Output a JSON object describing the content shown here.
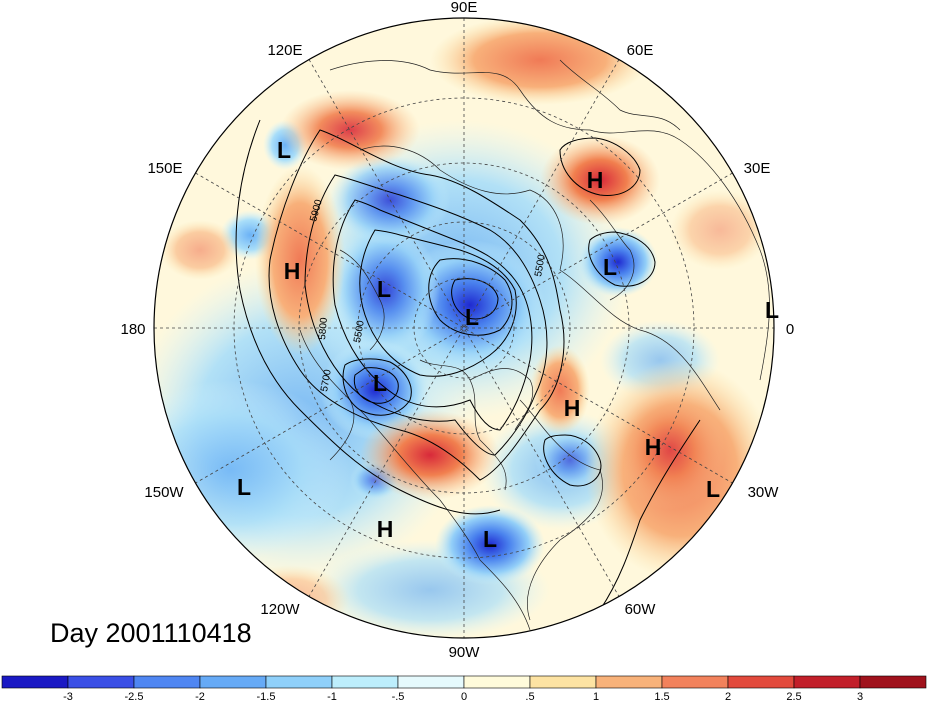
{
  "map": {
    "projection": "north-polar-stereographic",
    "day_label": "Day 2001110418",
    "longitude_labels": [
      "90E",
      "60E",
      "30E",
      "0",
      "30W",
      "60W",
      "90W",
      "120W",
      "150W",
      "180",
      "150E",
      "120E"
    ],
    "contour_labels": [
      "5900",
      "5800",
      "5700",
      "5500",
      "5500"
    ],
    "pressure_centers": [
      {
        "type": "L",
        "region": "east-siberia"
      },
      {
        "type": "H",
        "region": "ural"
      },
      {
        "type": "L",
        "region": "scandinavia"
      },
      {
        "type": "L",
        "region": "europe-edge"
      },
      {
        "type": "H",
        "region": "alaska-gulf"
      },
      {
        "type": "L",
        "region": "arctic-canada"
      },
      {
        "type": "L",
        "region": "north-pole"
      },
      {
        "type": "L",
        "region": "hudson-bay"
      },
      {
        "type": "H",
        "region": "greenland-south"
      },
      {
        "type": "H",
        "region": "north-atlantic"
      },
      {
        "type": "L",
        "region": "east-atlantic"
      },
      {
        "type": "L",
        "region": "north-pacific"
      },
      {
        "type": "H",
        "region": "eastern-pacific"
      },
      {
        "type": "L",
        "region": "gulf-of-mexico"
      }
    ]
  },
  "colorbar": {
    "labels": [
      "-3",
      "-2.5",
      "-2",
      "-1.5",
      "-1",
      "-.5",
      "0",
      ".5",
      "1",
      "1.5",
      "2",
      "2.5",
      "3"
    ],
    "colors": [
      "#1a19c4",
      "#3a4fe6",
      "#4f86f2",
      "#66aaf6",
      "#8fd0fa",
      "#bdeefc",
      "#e6fafd",
      "#fffbdb",
      "#fde3a3",
      "#f8b27a",
      "#f2825c",
      "#e24a3c",
      "#c21f2a",
      "#a0121c"
    ]
  }
}
